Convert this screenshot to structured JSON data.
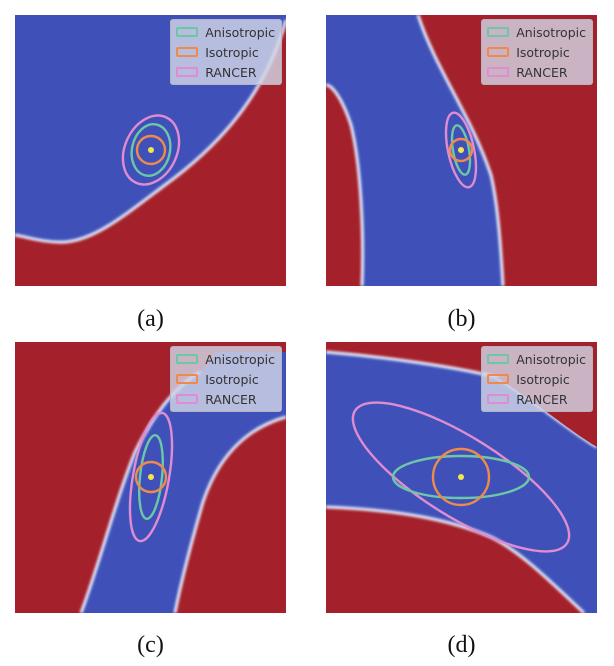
{
  "colors": {
    "blue_region": "#3f51b9",
    "red_region": "#a4202b",
    "boundary_glow": "#e8eeff",
    "anisotropic": "#6dc7a7",
    "isotropic": "#ef8a4c",
    "rancer": "#df8cd1",
    "center_dot": "#f2e64c"
  },
  "legend": {
    "anisotropic": "Anisotropic",
    "isotropic": "Isotropic",
    "rancer": "RANCER"
  },
  "panels": [
    {
      "id": "a",
      "caption": "(a)"
    },
    {
      "id": "b",
      "caption": "(b)"
    },
    {
      "id": "c",
      "caption": "(c)"
    },
    {
      "id": "d",
      "caption": "(d)"
    }
  ]
}
